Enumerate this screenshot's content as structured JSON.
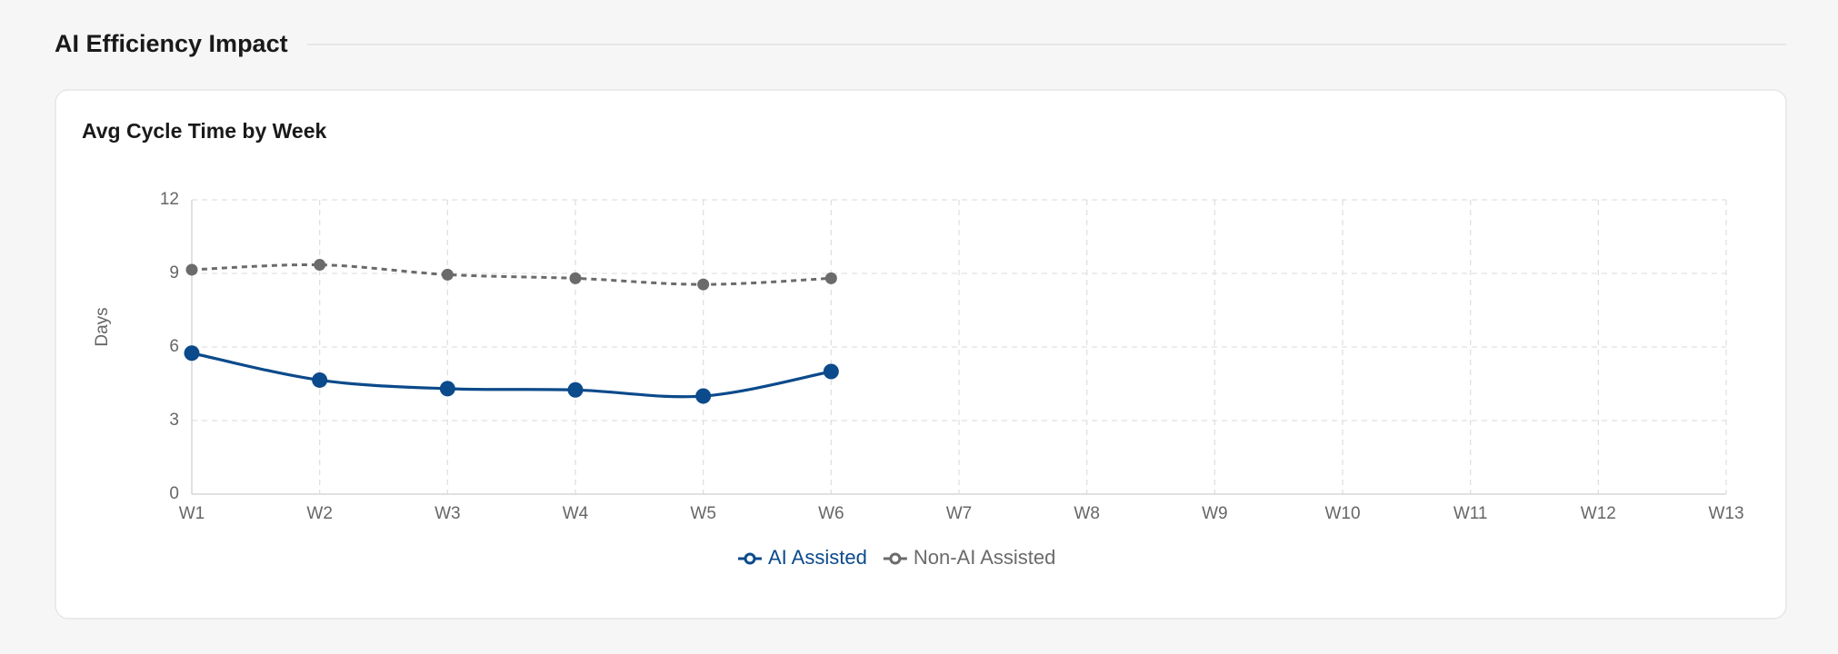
{
  "header": {
    "title": "AI Efficiency Impact"
  },
  "chart_data": {
    "type": "line",
    "title": "Avg Cycle Time by Week",
    "y_label": "Days",
    "categories": [
      "W1",
      "W2",
      "W3",
      "W4",
      "W5",
      "W6",
      "W7",
      "W8",
      "W9",
      "W10",
      "W11",
      "W12",
      "W13"
    ],
    "series": [
      {
        "name": "AI Assisted",
        "color": "#0b4a8b",
        "dashed": false,
        "values": [
          5.75,
          4.65,
          4.3,
          4.25,
          4.0,
          5.0,
          null,
          null,
          null,
          null,
          null,
          null,
          null
        ]
      },
      {
        "name": "Non-AI Assisted",
        "color": "#6b6b6b",
        "dashed": true,
        "values": [
          9.15,
          9.35,
          8.95,
          8.8,
          8.55,
          8.8,
          null,
          null,
          null,
          null,
          null,
          null,
          null
        ]
      }
    ],
    "ylim": [
      0,
      12
    ],
    "yticks": [
      0,
      3,
      6,
      9,
      12
    ],
    "grid": true,
    "legend": "bottom"
  }
}
